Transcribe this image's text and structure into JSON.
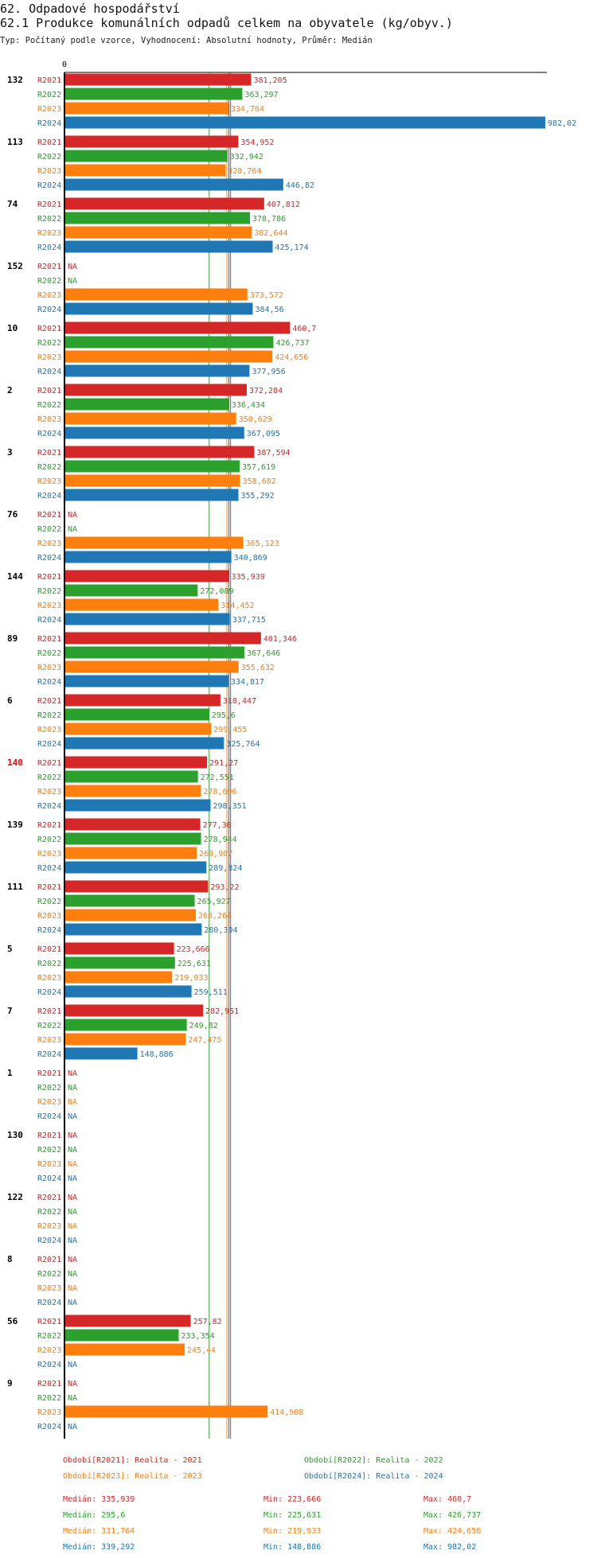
{
  "header": {
    "title": "62. Odpadové hospodářství",
    "chart_title": "62.1 Produkce komunálních odpadů celkem na obyvatele (kg/obyv.)",
    "subtitle": "Typ: Počítaný podle vzorce, Vyhodnocení: Absolutní hodnoty, Průměr: Medián"
  },
  "colors": {
    "R2021": "#d62728",
    "R2022": "#2ca02c",
    "R2023": "#ff7f0e",
    "R2024": "#1f77b4",
    "highlight_group": "#ff0000"
  },
  "chart_data": {
    "type": "bar",
    "orientation": "horizontal",
    "title": "62.1 Produkce komunálních odpadů celkem na obyvatele (kg/obyv.)",
    "x_axis_label": "0",
    "xlim": [
      0,
      982.02
    ],
    "series_names": [
      "R2021",
      "R2022",
      "R2023",
      "R2024"
    ],
    "na_label": "NA",
    "highlight_group": "140",
    "groups": [
      {
        "id": "132",
        "values": [
          "381,205",
          "363,297",
          "334,764",
          "982,02"
        ]
      },
      {
        "id": "113",
        "values": [
          "354,952",
          "332,942",
          "328,764",
          "446,82"
        ]
      },
      {
        "id": "74",
        "values": [
          "407,812",
          "378,786",
          "382,644",
          "425,174"
        ]
      },
      {
        "id": "152",
        "values": [
          null,
          null,
          "373,572",
          "384,56"
        ]
      },
      {
        "id": "10",
        "values": [
          "460,7",
          "426,737",
          "424,656",
          "377,956"
        ]
      },
      {
        "id": "2",
        "values": [
          "372,284",
          "336,434",
          "350,629",
          "367,095"
        ]
      },
      {
        "id": "3",
        "values": [
          "387,594",
          "357,619",
          "358,602",
          "355,292"
        ]
      },
      {
        "id": "76",
        "values": [
          null,
          null,
          "365,123",
          "340,869"
        ]
      },
      {
        "id": "144",
        "values": [
          "335,939",
          "272,089",
          "314,452",
          "337,715"
        ]
      },
      {
        "id": "89",
        "values": [
          "401,346",
          "367,646",
          "355,632",
          "334,817"
        ]
      },
      {
        "id": "6",
        "values": [
          "318,447",
          "295,6",
          "299,455",
          "325,764"
        ]
      },
      {
        "id": "140",
        "values": [
          "291,27",
          "272,551",
          "278,696",
          "298,351"
        ]
      },
      {
        "id": "139",
        "values": [
          "277,36",
          "278,944",
          "269,987",
          "289,824"
        ]
      },
      {
        "id": "111",
        "values": [
          "293,22",
          "265,927",
          "268,264",
          "280,304"
        ]
      },
      {
        "id": "5",
        "values": [
          "223,666",
          "225,631",
          "219,933",
          "259,511"
        ]
      },
      {
        "id": "7",
        "values": [
          "282,951",
          "249,82",
          "247,475",
          "148,886"
        ]
      },
      {
        "id": "1",
        "values": [
          null,
          null,
          null,
          null
        ]
      },
      {
        "id": "130",
        "values": [
          null,
          null,
          null,
          null
        ]
      },
      {
        "id": "122",
        "values": [
          null,
          null,
          null,
          null
        ]
      },
      {
        "id": "8",
        "values": [
          null,
          null,
          null,
          null
        ]
      },
      {
        "id": "56",
        "values": [
          "257,82",
          "233,354",
          "245,44",
          null
        ]
      },
      {
        "id": "9",
        "values": [
          null,
          null,
          "414,908",
          null
        ]
      }
    ],
    "reference_lines": [
      {
        "series": "R2022",
        "value": 295.6
      },
      {
        "series": "R2023",
        "value": 331.764
      },
      {
        "series": "R2021",
        "value": 335.939
      },
      {
        "series": "R2024",
        "value": 339.292
      }
    ],
    "legend": [
      {
        "series": "R2021",
        "label": "Období[R2021]: Realita - 2021"
      },
      {
        "series": "R2022",
        "label": "Období[R2022]: Realita - 2022"
      },
      {
        "series": "R2023",
        "label": "Období[R2023]: Realita - 2023"
      },
      {
        "series": "R2024",
        "label": "Období[R2024]: Realita - 2024"
      }
    ],
    "stats": [
      {
        "series": "R2021",
        "median": "Medián: 335,939",
        "min": "Min: 223,666",
        "max": "Max: 460,7"
      },
      {
        "series": "R2022",
        "median": "Medián: 295,6",
        "min": "Min: 225,631",
        "max": "Max: 426,737"
      },
      {
        "series": "R2023",
        "median": "Medián: 331,764",
        "min": "Min: 219,933",
        "max": "Max: 424,656"
      },
      {
        "series": "R2024",
        "median": "Medián: 339,292",
        "min": "Min: 148,886",
        "max": "Max: 982,02"
      }
    ]
  }
}
